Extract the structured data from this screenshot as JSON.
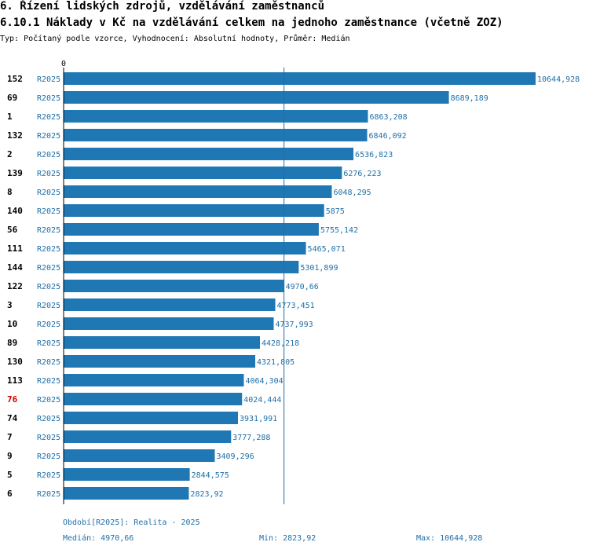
{
  "header": {
    "title": "6. Řízení lidských zdrojů, vzdělávání zaměstnanců",
    "subtitle": "6.10.1 Náklady v Kč na vzdělávání celkem na jednoho zaměstnance (včetně ZOZ)",
    "type_line": "Typ: Počítaný podle vzorce, Vyhodnocení: Absolutní hodnoty, Průměr: Medián"
  },
  "colors": {
    "bar": "#1f77b4",
    "label_blue": "#1f6fa8",
    "highlight": "#cc0000",
    "text": "#000000"
  },
  "chart_data": {
    "type": "bar",
    "orientation": "horizontal",
    "axis_zero_label": "0",
    "xlim": [
      0,
      10644.928
    ],
    "median": 4970.66,
    "highlight_category": "76",
    "categories": [
      "152",
      "69",
      "1",
      "132",
      "2",
      "139",
      "8",
      "140",
      "56",
      "111",
      "144",
      "122",
      "3",
      "10",
      "89",
      "130",
      "113",
      "76",
      "74",
      "7",
      "9",
      "5",
      "6"
    ],
    "period_labels": [
      "R2025",
      "R2025",
      "R2025",
      "R2025",
      "R2025",
      "R2025",
      "R2025",
      "R2025",
      "R2025",
      "R2025",
      "R2025",
      "R2025",
      "R2025",
      "R2025",
      "R2025",
      "R2025",
      "R2025",
      "R2025",
      "R2025",
      "R2025",
      "R2025",
      "R2025",
      "R2025"
    ],
    "values": [
      10644.928,
      8689.189,
      6863.208,
      6846.092,
      6536.823,
      6276.223,
      6048.295,
      5875,
      5755.142,
      5465.071,
      5301.899,
      4970.66,
      4773.451,
      4737.993,
      4428.218,
      4321.805,
      4064.304,
      4024.444,
      3931.991,
      3777.288,
      3409.296,
      2844.575,
      2823.92
    ],
    "value_labels": [
      "10644,928",
      "8689,189",
      "6863,208",
      "6846,092",
      "6536,823",
      "6276,223",
      "6048,295",
      "5875",
      "5755,142",
      "5465,071",
      "5301,899",
      "4970,66",
      "4773,451",
      "4737,993",
      "4428,218",
      "4321,805",
      "4064,304",
      "4024,444",
      "3931,991",
      "3777,288",
      "3409,296",
      "2844,575",
      "2823,92"
    ]
  },
  "footer": {
    "period": "Období[R2025]: Realita - 2025",
    "median": "Medián: 4970,66",
    "min": "Min: 2823,92",
    "max": "Max: 10644,928"
  }
}
